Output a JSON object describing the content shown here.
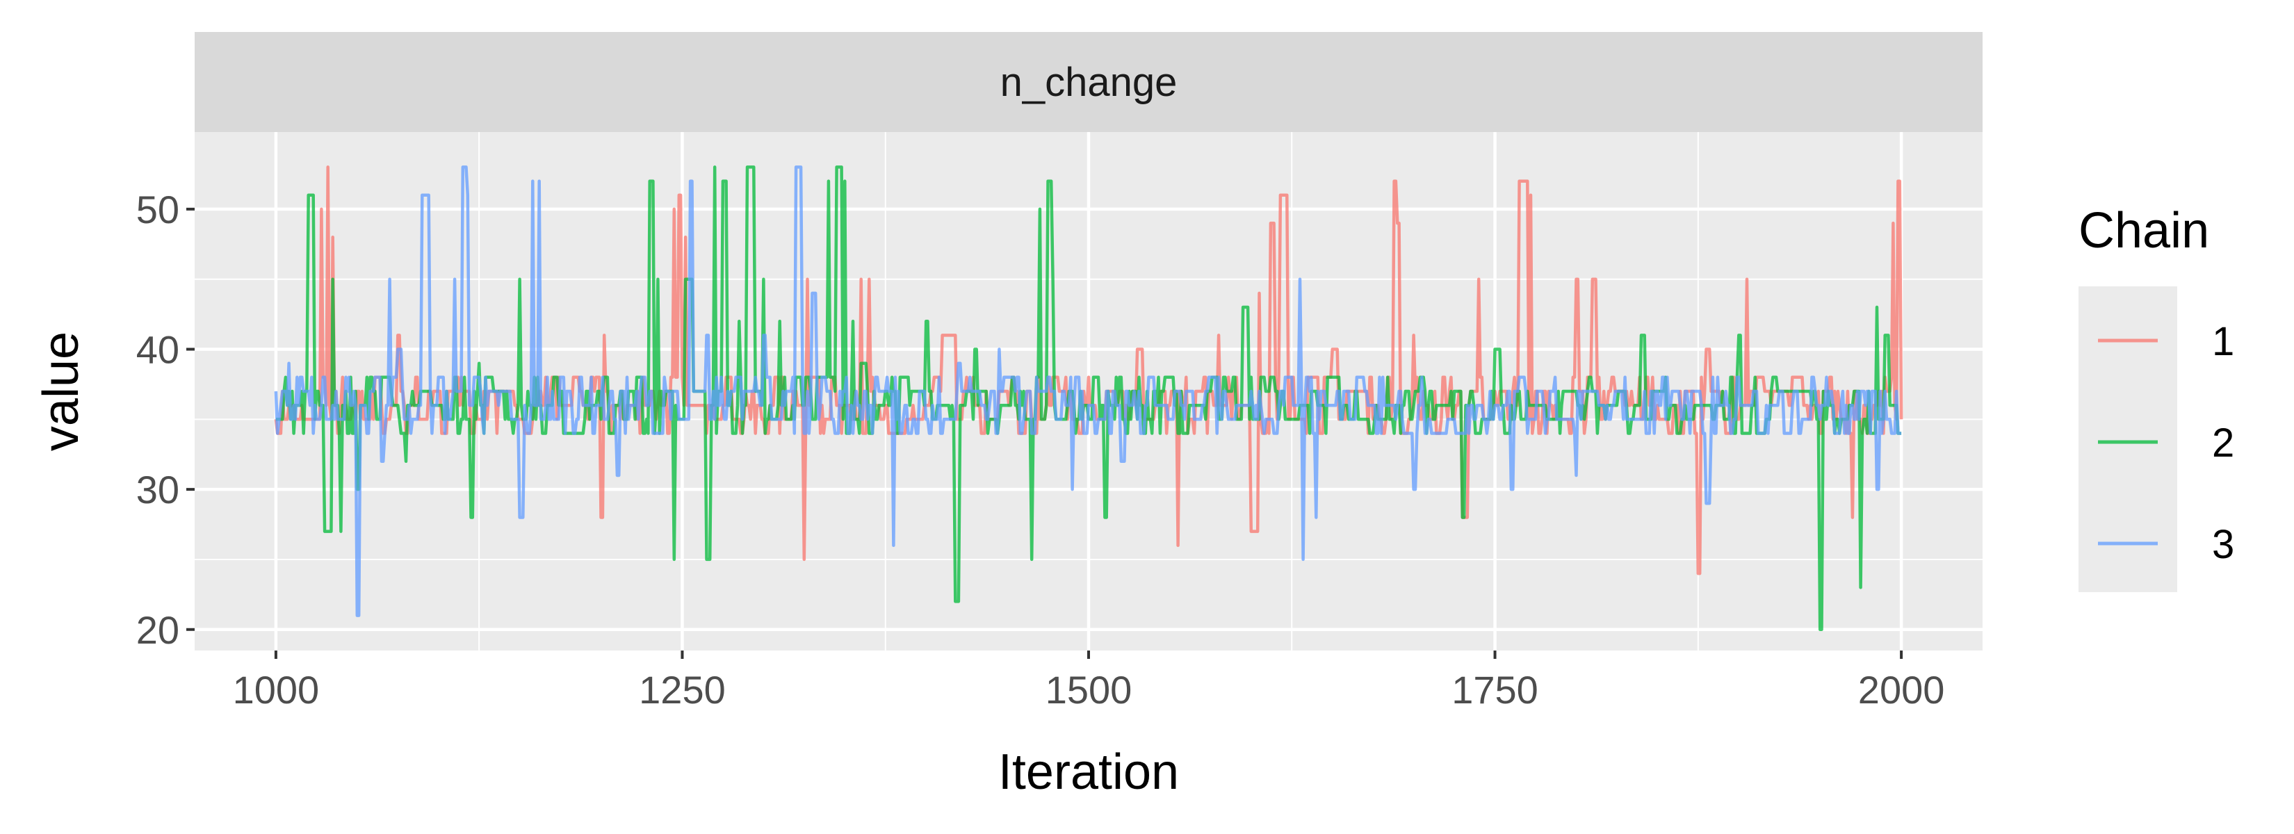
{
  "chart_data": {
    "type": "line",
    "strip_title": "n_change",
    "xlabel": "Iteration",
    "ylabel": "value",
    "xlim": [
      950,
      2050
    ],
    "ylim": [
      18.5,
      55.5
    ],
    "x_ticks": [
      1000,
      1250,
      1500,
      1750,
      2000
    ],
    "y_ticks": [
      20,
      30,
      40,
      50
    ],
    "grid": true,
    "legend": {
      "title": "Chain",
      "position": "right"
    },
    "colors": {
      "panel": "#EBEBEB",
      "strip": "#D9D9D9",
      "grid": "#FFFFFF",
      "legend_key_bg": "#EBEBEB"
    },
    "series": [
      {
        "name": "1",
        "color": "#F8766D",
        "iter_start": 1000,
        "iter_end": 2000,
        "base_center": 36,
        "base_spread": 2,
        "seed": 11,
        "spikes": [
          [
            1028,
            50
          ],
          [
            1032,
            53
          ],
          [
            1035,
            48
          ],
          [
            1075,
            41
          ],
          [
            1200,
            28
          ],
          [
            1202,
            41
          ],
          [
            1245,
            50
          ],
          [
            1248,
            51
          ],
          [
            1252,
            48
          ],
          [
            1310,
            34
          ],
          [
            1325,
            25
          ],
          [
            1327,
            45
          ],
          [
            1360,
            45
          ],
          [
            1365,
            45
          ],
          [
            1410,
            41
          ],
          [
            1530,
            40
          ],
          [
            1555,
            26
          ],
          [
            1580,
            41
          ],
          [
            1600,
            27
          ],
          [
            1605,
            44
          ],
          [
            1612,
            49
          ],
          [
            1618,
            51
          ],
          [
            1625,
            38
          ],
          [
            1650,
            40
          ],
          [
            1688,
            52
          ],
          [
            1690,
            49
          ],
          [
            1700,
            41
          ],
          [
            1730,
            28
          ],
          [
            1740,
            45
          ],
          [
            1765,
            52
          ],
          [
            1768,
            52
          ],
          [
            1772,
            51
          ],
          [
            1800,
            45
          ],
          [
            1810,
            45
          ],
          [
            1840,
            35
          ],
          [
            1875,
            24
          ],
          [
            1880,
            40
          ],
          [
            1905,
            45
          ],
          [
            1950,
            34
          ],
          [
            1970,
            28
          ],
          [
            1995,
            49
          ],
          [
            1998,
            52
          ]
        ]
      },
      {
        "name": "2",
        "color": "#00BA38",
        "iter_start": 1000,
        "iter_end": 2000,
        "base_center": 36,
        "base_spread": 2,
        "seed": 23,
        "spikes": [
          [
            1020,
            51
          ],
          [
            1030,
            27
          ],
          [
            1035,
            45
          ],
          [
            1040,
            27
          ],
          [
            1050,
            30
          ],
          [
            1080,
            32
          ],
          [
            1120,
            28
          ],
          [
            1125,
            39
          ],
          [
            1150,
            45
          ],
          [
            1230,
            52
          ],
          [
            1235,
            45
          ],
          [
            1245,
            25
          ],
          [
            1252,
            45
          ],
          [
            1265,
            25
          ],
          [
            1270,
            53
          ],
          [
            1275,
            52
          ],
          [
            1285,
            42
          ],
          [
            1290,
            53
          ],
          [
            1300,
            45
          ],
          [
            1310,
            42
          ],
          [
            1340,
            52
          ],
          [
            1345,
            53
          ],
          [
            1350,
            52
          ],
          [
            1355,
            42
          ],
          [
            1360,
            39
          ],
          [
            1400,
            42
          ],
          [
            1418,
            22
          ],
          [
            1430,
            40
          ],
          [
            1465,
            25
          ],
          [
            1470,
            50
          ],
          [
            1475,
            52
          ],
          [
            1478,
            45
          ],
          [
            1510,
            28
          ],
          [
            1540,
            37
          ],
          [
            1595,
            43
          ],
          [
            1600,
            38
          ],
          [
            1730,
            28
          ],
          [
            1750,
            40
          ],
          [
            1840,
            41
          ],
          [
            1855,
            38
          ],
          [
            1900,
            41
          ],
          [
            1950,
            20
          ],
          [
            1975,
            23
          ],
          [
            1985,
            43
          ],
          [
            1990,
            41
          ]
        ]
      },
      {
        "name": "3",
        "color": "#619CFF",
        "iter_start": 1000,
        "iter_end": 2000,
        "base_center": 36,
        "base_spread": 2,
        "seed": 37,
        "spikes": [
          [
            1008,
            39
          ],
          [
            1050,
            21
          ],
          [
            1065,
            32
          ],
          [
            1070,
            45
          ],
          [
            1075,
            40
          ],
          [
            1090,
            51
          ],
          [
            1092,
            51
          ],
          [
            1110,
            45
          ],
          [
            1115,
            53
          ],
          [
            1118,
            51
          ],
          [
            1150,
            28
          ],
          [
            1158,
            52
          ],
          [
            1162,
            52
          ],
          [
            1175,
            38
          ],
          [
            1210,
            31
          ],
          [
            1255,
            52
          ],
          [
            1265,
            41
          ],
          [
            1300,
            41
          ],
          [
            1320,
            53
          ],
          [
            1330,
            44
          ],
          [
            1370,
            38
          ],
          [
            1380,
            26
          ],
          [
            1420,
            39
          ],
          [
            1445,
            40
          ],
          [
            1490,
            30
          ],
          [
            1520,
            32
          ],
          [
            1570,
            36
          ],
          [
            1630,
            45
          ],
          [
            1632,
            25
          ],
          [
            1640,
            28
          ],
          [
            1660,
            37
          ],
          [
            1700,
            30
          ],
          [
            1760,
            30
          ],
          [
            1800,
            31
          ],
          [
            1870,
            34
          ],
          [
            1880,
            29
          ],
          [
            1985,
            30
          ],
          [
            1998,
            34
          ]
        ]
      }
    ]
  }
}
